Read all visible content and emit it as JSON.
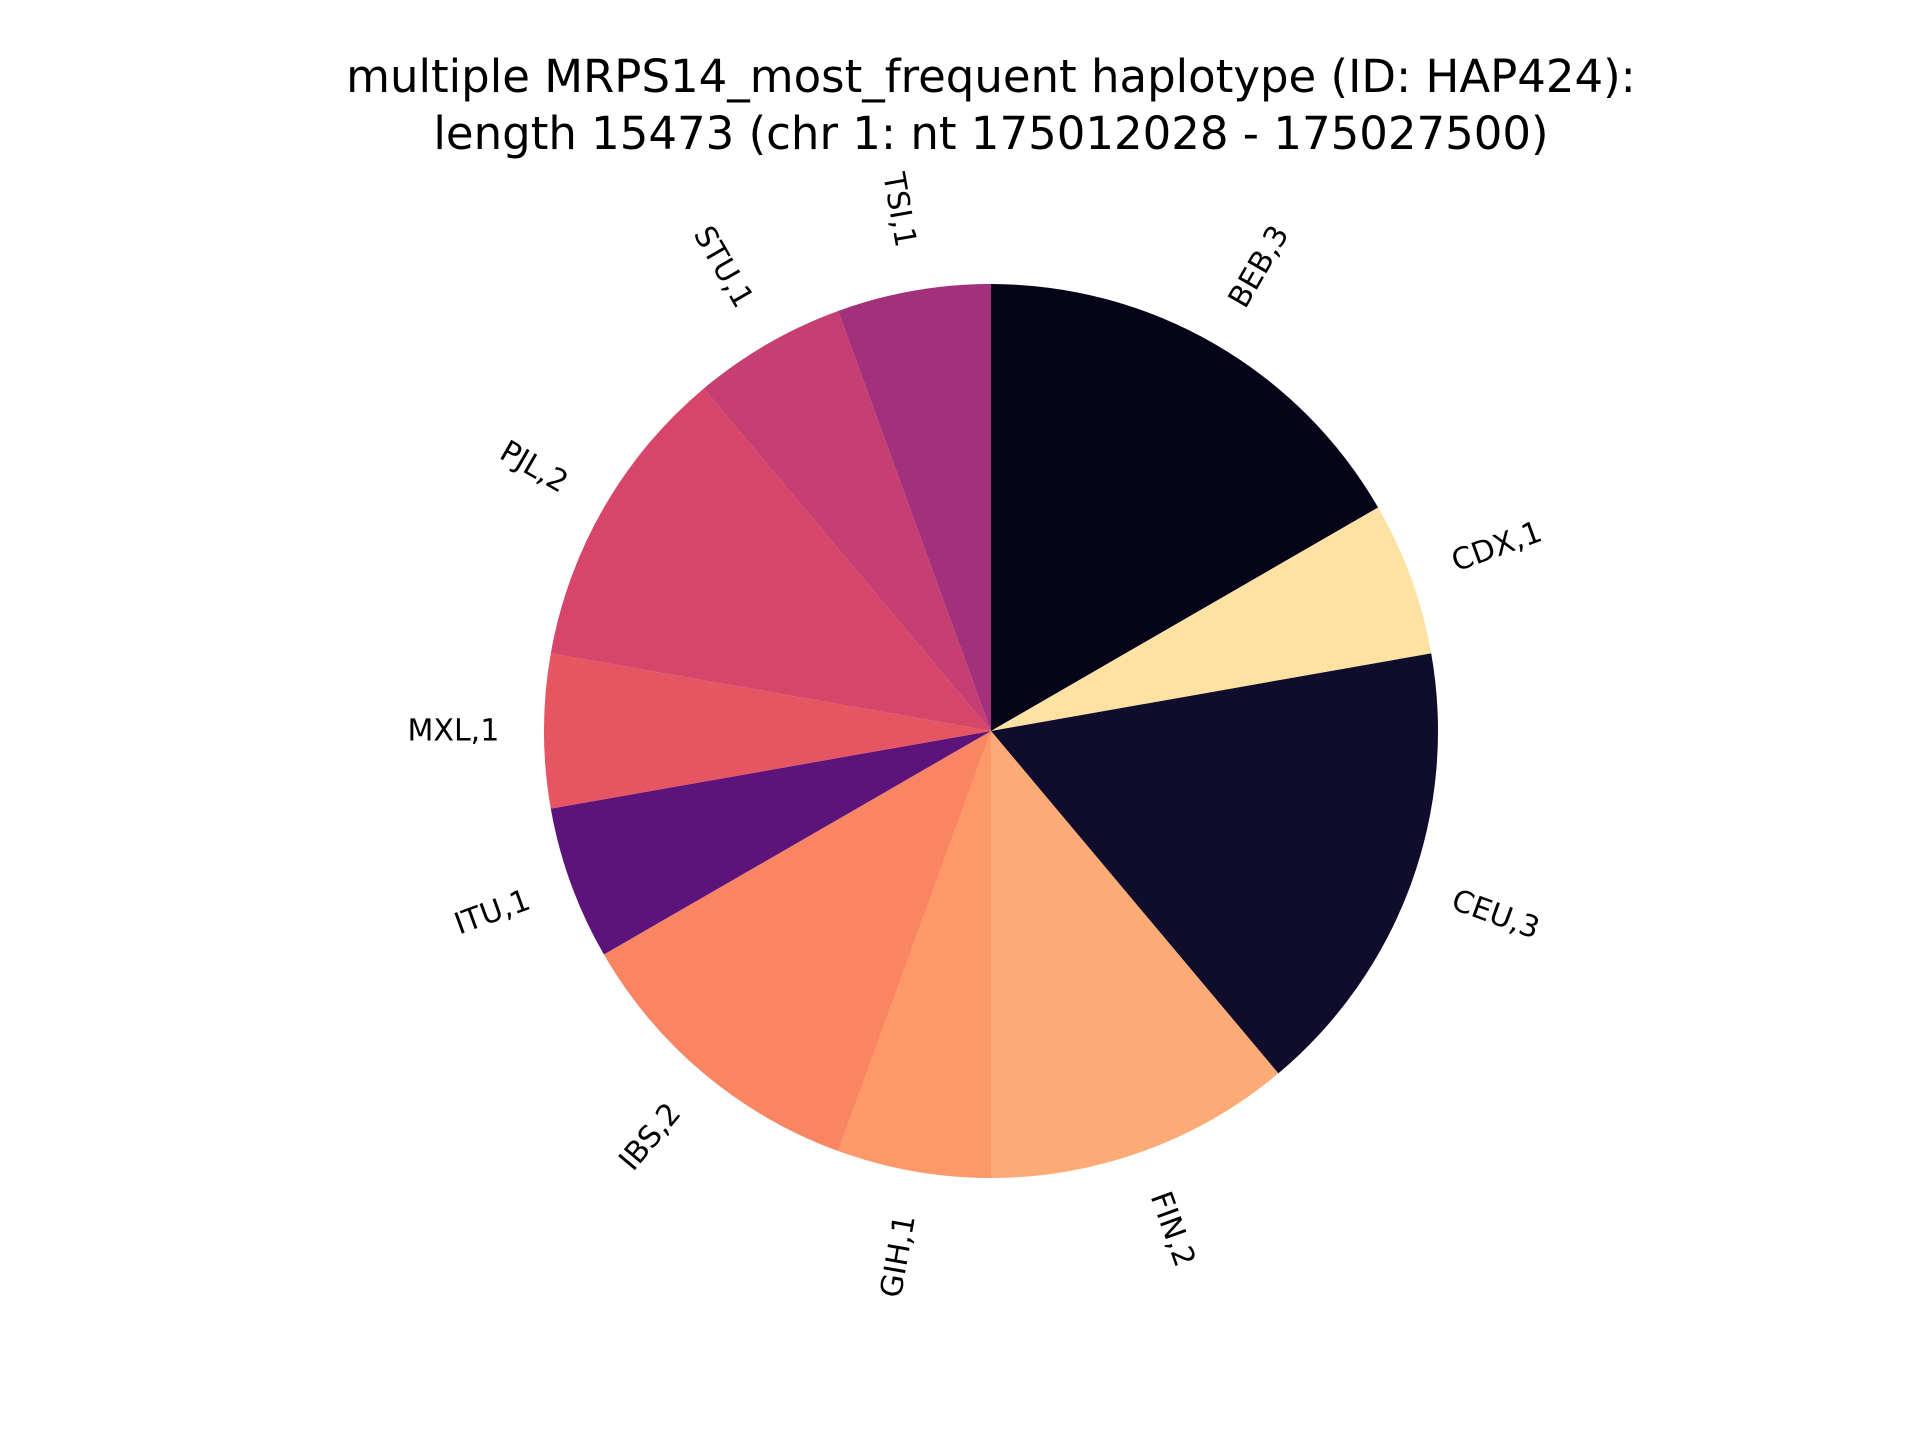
{
  "chart_data": {
    "type": "pie",
    "title_lines": [
      "multiple MRPS14_most_frequent haplotype (ID: HAP424):",
      "length 15473 (chr 1: nt 175012028 - 175027500)"
    ],
    "start_angle_deg": 90,
    "direction": "clockwise",
    "slices": [
      {
        "label": "BEB,3",
        "value": 3,
        "color": "#060418"
      },
      {
        "label": "CDX,1",
        "value": 1,
        "color": "#fde2a4"
      },
      {
        "label": "CEU,3",
        "value": 3,
        "color": "#100c2c"
      },
      {
        "label": "FIN,2",
        "value": 2,
        "color": "#fcab76"
      },
      {
        "label": "GIH,1",
        "value": 1,
        "color": "#fd9868"
      },
      {
        "label": "IBS,2",
        "value": 2,
        "color": "#f98562"
      },
      {
        "label": "ITU,1",
        "value": 1,
        "color": "#5c147b"
      },
      {
        "label": "MXL,1",
        "value": 1,
        "color": "#e65562"
      },
      {
        "label": "PJL,2",
        "value": 2,
        "color": "#d7466a"
      },
      {
        "label": "STU,1",
        "value": 1,
        "color": "#c63f72"
      },
      {
        "label": "TSI,1",
        "value": 1,
        "color": "#a3307b"
      }
    ]
  }
}
